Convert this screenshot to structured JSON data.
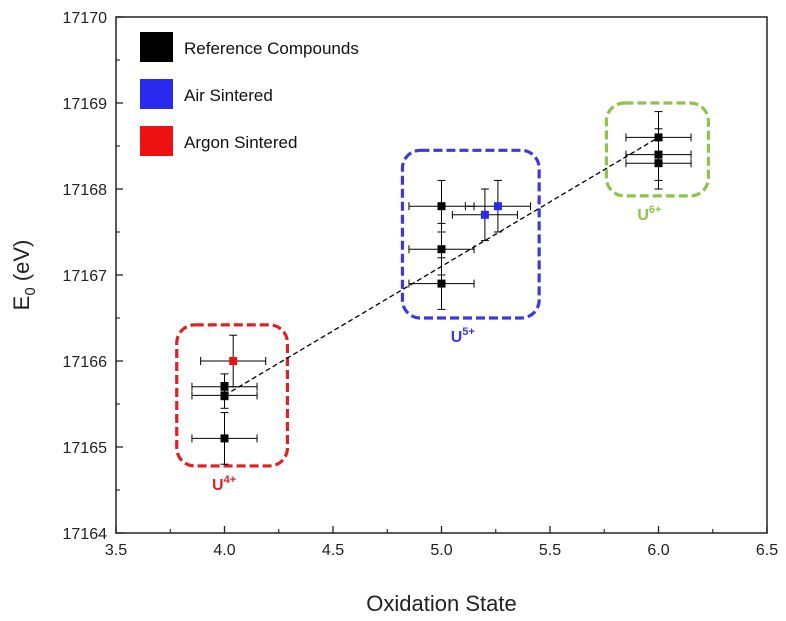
{
  "chart_data": {
    "type": "scatter",
    "xlabel": "Oxidation State",
    "ylabel": "E",
    "ylabel_sub": "0",
    "ylabel_unit": " (eV)",
    "xlim": [
      3.5,
      6.5
    ],
    "ylim": [
      17164,
      17170
    ],
    "xticks": [
      "3.5",
      "4.0",
      "4.5",
      "5.0",
      "5.5",
      "6.0",
      "6.5"
    ],
    "yticks": [
      "17164",
      "17165",
      "17166",
      "17167",
      "17168",
      "17169",
      "17170"
    ],
    "grid": false,
    "legend_position": "top-left",
    "series": [
      {
        "name": "Reference Compounds",
        "color": "#000000",
        "points": [
          {
            "x": 4.0,
            "y": 17165.7,
            "xerr": 0.15,
            "yerr": 0.15
          },
          {
            "x": 4.0,
            "y": 17165.6,
            "xerr": 0.15,
            "yerr": 0.15
          },
          {
            "x": 4.0,
            "y": 17165.1,
            "xerr": 0.15,
            "yerr": 0.3
          },
          {
            "x": 5.0,
            "y": 17167.8,
            "xerr": 0.15,
            "yerr": 0.3
          },
          {
            "x": 5.0,
            "y": 17167.3,
            "xerr": 0.15,
            "yerr": 0.3
          },
          {
            "x": 5.0,
            "y": 17166.9,
            "xerr": 0.15,
            "yerr": 0.3
          },
          {
            "x": 6.0,
            "y": 17168.6,
            "xerr": 0.15,
            "yerr": 0.3
          },
          {
            "x": 6.0,
            "y": 17168.4,
            "xerr": 0.15,
            "yerr": 0.3
          },
          {
            "x": 6.0,
            "y": 17168.3,
            "xerr": 0.15,
            "yerr": 0.3
          }
        ]
      },
      {
        "name": "Air Sintered",
        "color": "#2a2aee",
        "points": [
          {
            "x": 5.2,
            "y": 17167.7,
            "xerr": 0.15,
            "yerr": 0.3
          },
          {
            "x": 5.26,
            "y": 17167.8,
            "xerr": 0.15,
            "yerr": 0.3
          }
        ]
      },
      {
        "name": "Argon Sintered",
        "color": "#ee1111",
        "points": [
          {
            "x": 4.04,
            "y": 17166.0,
            "xerr": 0.15,
            "yerr": 0.3
          }
        ]
      }
    ],
    "fit_line": {
      "x": [
        4.0,
        6.0
      ],
      "y": [
        17165.6,
        17168.6
      ],
      "style": "dashed",
      "color": "#000000"
    },
    "groups": [
      {
        "label": "U",
        "sup": "4+",
        "color": "#dd2222",
        "xrange": [
          3.78,
          4.29
        ],
        "yrange": [
          17164.78,
          17166.42
        ]
      },
      {
        "label": "U",
        "sup": "5+",
        "color": "#3a3ae0",
        "xrange": [
          4.82,
          5.45
        ],
        "yrange": [
          17166.5,
          17168.45
        ]
      },
      {
        "label": "U",
        "sup": "6+",
        "color": "#8fc44a",
        "xrange": [
          5.76,
          6.23
        ],
        "yrange": [
          17167.92,
          17169.0
        ]
      }
    ]
  }
}
